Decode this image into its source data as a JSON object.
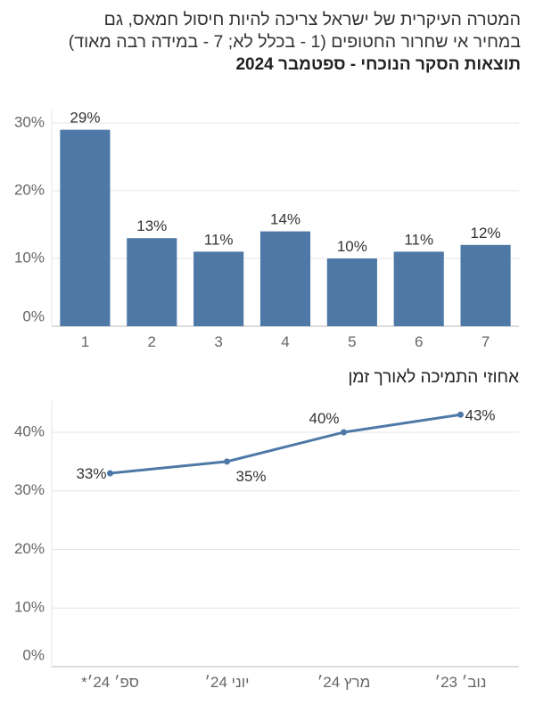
{
  "title": {
    "line1": "המטרה העיקרית של ישראל צריכה להיות חיסול חמאס, גם",
    "line2": "במחיר אי שחרור החטופים  (1 - בכלל לא; 7 - במידה רבה מאוד)",
    "subtitle": "תוצאות הסקר הנוכחי - ספטמבר 2024"
  },
  "line_section_title": "אחוזי התמיכה לאורך זמן",
  "chart_data": [
    {
      "type": "bar",
      "categories": [
        "1",
        "2",
        "3",
        "4",
        "5",
        "6",
        "7"
      ],
      "values": [
        29,
        13,
        11,
        14,
        10,
        11,
        12
      ],
      "value_labels": [
        "29%",
        "13%",
        "11%",
        "14%",
        "10%",
        "11%",
        "12%"
      ],
      "yticks": [
        "0%",
        "10%",
        "20%",
        "30%"
      ],
      "ylim": [
        0,
        30
      ],
      "bar_color": "#4e79a7",
      "grid": true
    },
    {
      "type": "line",
      "title": "אחוזי התמיכה לאורך זמן",
      "categories": [
        "ספ׳ 24׳*",
        "יוני 24׳",
        "מרץ 24׳",
        "נוב׳ 23׳"
      ],
      "values": [
        33,
        35,
        40,
        43
      ],
      "value_labels": [
        "33%",
        "35%",
        "40%",
        "43%"
      ],
      "yticks": [
        "0%",
        "10%",
        "20%",
        "30%",
        "40%"
      ],
      "ylim": [
        0,
        40
      ],
      "line_color": "#4e79a7",
      "grid": true
    }
  ]
}
